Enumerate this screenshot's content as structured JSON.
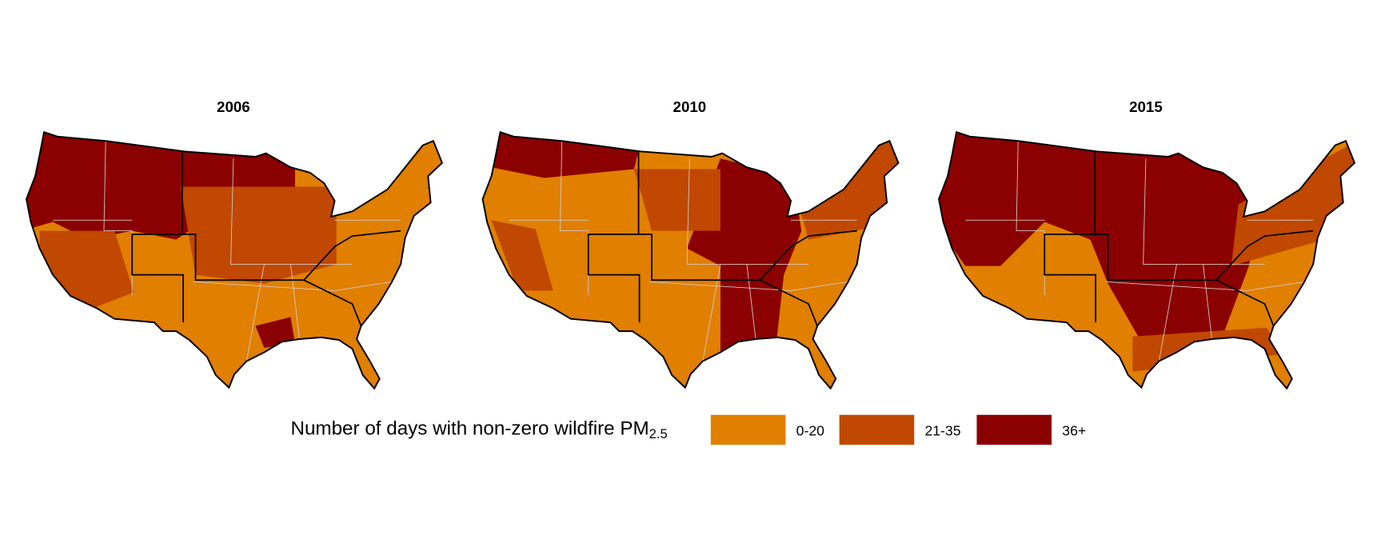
{
  "panels": [
    {
      "title": "2006"
    },
    {
      "title": "2010"
    },
    {
      "title": "2015"
    }
  ],
  "legend": {
    "title": "Number of days with non-zero wildfire PM",
    "title_subscript": "2.5",
    "items": [
      {
        "label": "0-20",
        "color": "#e07f00"
      },
      {
        "label": "21-35",
        "color": "#c04800"
      },
      {
        "label": "36+",
        "color": "#8b0000"
      }
    ]
  }
}
